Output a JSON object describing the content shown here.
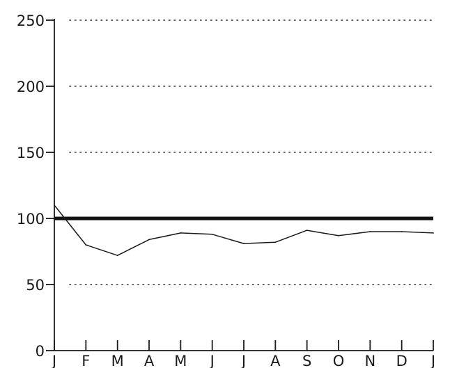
{
  "chart_data": {
    "type": "line",
    "title": "",
    "xlabel": "",
    "ylabel": "",
    "x_categories": [
      "J",
      "F",
      "M",
      "A",
      "M",
      "J",
      "J",
      "A",
      "S",
      "O",
      "N",
      "D",
      "J"
    ],
    "ylim": [
      0,
      250
    ],
    "yticks": [
      0,
      50,
      100,
      150,
      200,
      250
    ],
    "gridlines": [
      50,
      150,
      200,
      250
    ],
    "grid": "horizontal dotted",
    "reference_line": {
      "value": 100,
      "style": "thick solid"
    },
    "series": [
      {
        "values": [
          110,
          80,
          72,
          84,
          89,
          88,
          81,
          82,
          91,
          87,
          90,
          90,
          89
        ]
      }
    ],
    "colors": {
      "line": "#1a1a1a",
      "background": "#ffffff"
    }
  }
}
